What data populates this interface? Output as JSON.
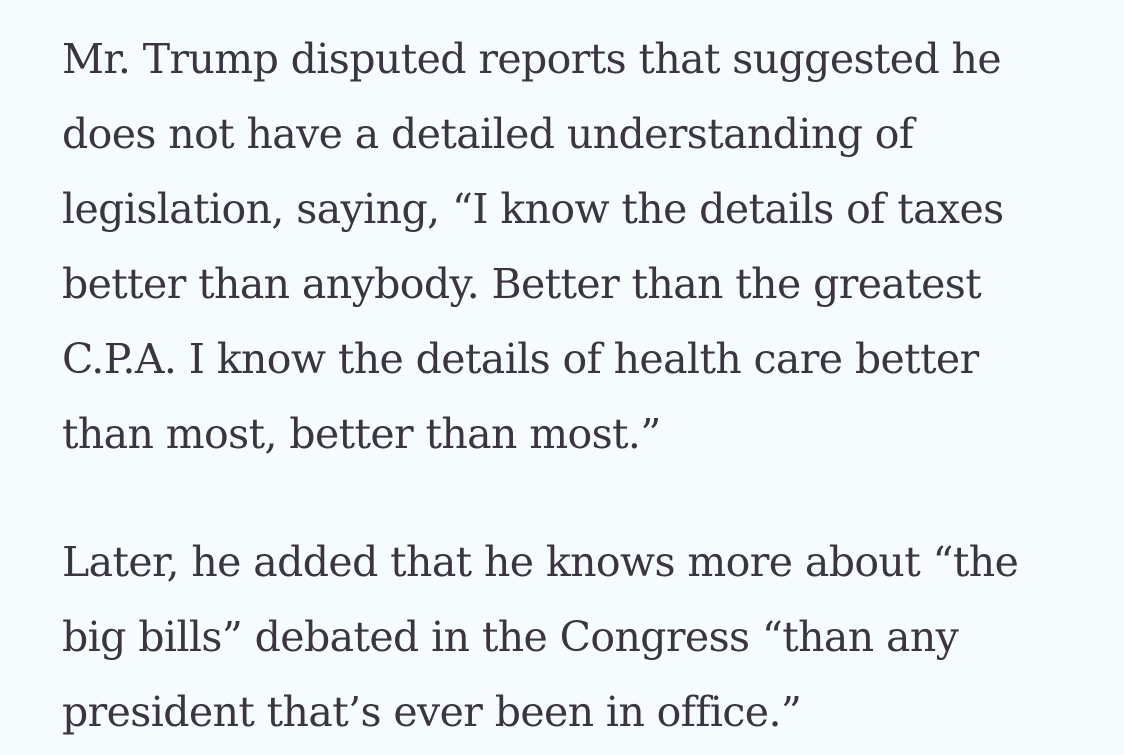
{
  "article": {
    "paragraphs": [
      {
        "lines": [
          "Mr. Trump disputed reports that suggested he",
          "does not have a detailed understanding of",
          "legislation, saying, “I know the details of taxes",
          "better than anybody. Better than the greatest",
          "C.P.A. I know the details of health care better",
          "than most, better than most.”"
        ]
      },
      {
        "lines": [
          "Later, he added that he knows more about “the",
          "big bills” debated in the Congress “than any",
          "president that’s ever been in office.”"
        ]
      }
    ]
  }
}
